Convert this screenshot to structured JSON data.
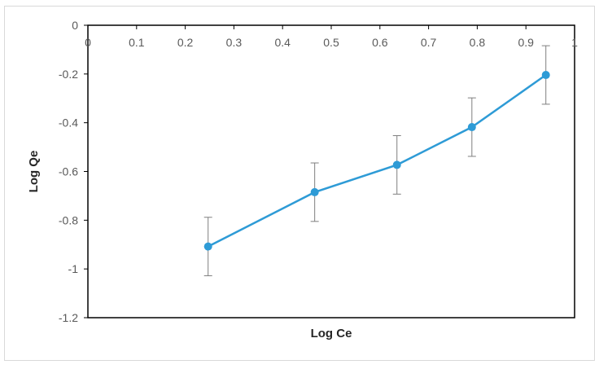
{
  "chart_data": {
    "type": "scatter",
    "xlabel": "Log Ce",
    "ylabel": "Log Qe",
    "xlim": [
      0,
      1
    ],
    "ylim": [
      -1.2,
      0
    ],
    "xticks": [
      0,
      0.1,
      0.2,
      0.3,
      0.4,
      0.5,
      0.6,
      0.7,
      0.8,
      0.9,
      1
    ],
    "xtick_labels": [
      "0",
      "0.1",
      "0.2",
      "0.3",
      "0.4",
      "0.5",
      "0.6",
      "0.7",
      "0.8",
      "0.9",
      "1"
    ],
    "yticks": [
      0,
      -0.2,
      -0.4,
      -0.6,
      -0.8,
      -1,
      -1.2
    ],
    "ytick_labels": [
      "0",
      "-0.2",
      "-0.4",
      "-0.6",
      "-0.8",
      "-1",
      "-1.2"
    ],
    "x_axis_position": "top",
    "grid": false,
    "series": [
      {
        "x": [
          0.247,
          0.466,
          0.635,
          0.789,
          0.941
        ],
        "y": [
          -0.908,
          -0.685,
          -0.573,
          -0.418,
          -0.204
        ],
        "error": [
          0.12,
          0.12,
          0.12,
          0.12,
          0.12
        ],
        "color": "#2E9BD6",
        "line": true,
        "markers": true
      }
    ],
    "error_bar_color": "#7f7f7f"
  }
}
